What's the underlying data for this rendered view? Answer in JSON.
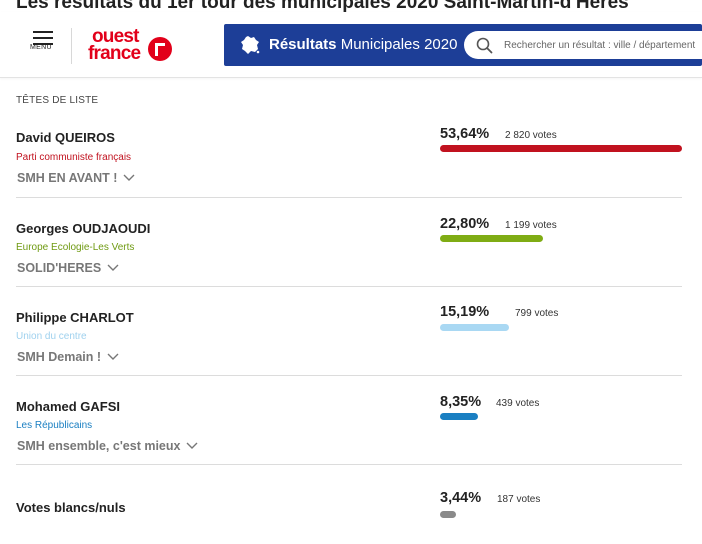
{
  "page": {
    "behind_title": "Les résultats du 1er tour des municipales 2020 Saint-Martin-d'Hères"
  },
  "header": {
    "menu_label": "MENU",
    "logo_line1": "ouest",
    "logo_line2": "france",
    "results_title_bold": "Résultats",
    "results_title_rest": " Municipales 2020",
    "search_placeholder": "Rechercher un résultat : ville / département"
  },
  "section_title": "TÊTES DE LISTE",
  "candidates": [
    {
      "name": "David QUEIROS",
      "party": "Parti communiste français",
      "party_color": "#c1121f",
      "list": "SMH EN AVANT !",
      "percent": "53,64%",
      "percent_value": 53.64,
      "votes": "2 820 votes",
      "bar_color": "#c1121f"
    },
    {
      "name": "Georges OUDJAOUDI",
      "party": "Europe Ecologie-Les Verts",
      "party_color": "#6f9a12",
      "list": "SOLID'HERES",
      "percent": "22,80%",
      "percent_value": 22.8,
      "votes": "1 199 votes",
      "bar_color": "#7fac14"
    },
    {
      "name": "Philippe CHARLOT",
      "party": "Union du centre",
      "party_color": "#9fd1ee",
      "list": "SMH Demain !",
      "percent": "15,19%",
      "percent_value": 15.19,
      "votes": "799 votes",
      "bar_color": "#a9d8f3"
    },
    {
      "name": "Mohamed GAFSI",
      "party": "Les Républicains",
      "party_color": "#1a7fc2",
      "list": "SMH ensemble, c'est mieux",
      "percent": "8,35%",
      "percent_value": 8.35,
      "votes": "439 votes",
      "bar_color": "#1a7fc2"
    }
  ],
  "blank_votes": {
    "label": "Votes blancs/nuls",
    "percent": "3,44%",
    "percent_value": 3.44,
    "votes": "187 votes",
    "bar_color": "#8a8a8a"
  },
  "icons": {
    "menu": "hamburger-icon",
    "france": "france-map-icon",
    "search": "search-icon",
    "chevron": "chevron-down-icon"
  }
}
